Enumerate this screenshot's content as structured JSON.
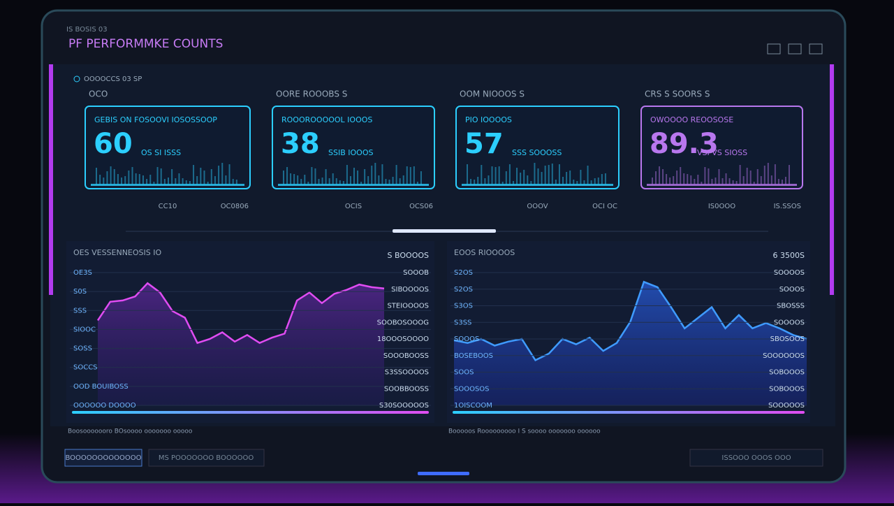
{
  "header": {
    "small": "IS BOSIS 03",
    "title": "PF PERFORMMKE COUNTS"
  },
  "subheader": "OOOOCCS 03 SP",
  "cards": [
    {
      "top_label": "OCO",
      "label": "GEBIS ON FOSOOVI IOSOSSOOP",
      "value": 60,
      "sub_label": "OS SI ISSS",
      "foot_left": "CC10",
      "foot_right": "OC0806",
      "color": "#2ccfff"
    },
    {
      "top_label": "OORE ROOOBS S",
      "label": "ROOOROOOOOL IOOOS",
      "value": 38,
      "sub_label": "SSIB IOOOS",
      "foot_left": "OCIS",
      "foot_right": "OCS06",
      "color": "#2ccfff"
    },
    {
      "top_label": "OOM NIOOOS S",
      "label": "PIO IOOOOS",
      "value": 57,
      "sub_label": "SSS SOOOSS",
      "foot_left": "OOOV",
      "foot_right": "OCI OC",
      "color": "#2ccfff"
    },
    {
      "top_label": "CRS S SOORS S",
      "label": "OWOOOO REOOSOSE",
      "value": 89.3,
      "sub_label": "VSI VS SIOSS",
      "foot_left": "IS0OOO",
      "foot_right": "IS.SSOS",
      "color": "#b877ee"
    }
  ],
  "charts": [
    {
      "title": "OES VESSENNEOSIS IO",
      "right_title": "S BOOOOS",
      "color": "#e04cf2",
      "left_labels": [
        "OE3S",
        "S0S",
        "SSS",
        "SIOOC",
        "SOSS",
        "SOCCS",
        "OOD BOUIBOSS",
        "OOOOOO DOOOO"
      ],
      "right_labels": [
        "SOOOB",
        "SIBOOOOS",
        "STEIOOOOS",
        "SOOBOSOOOG",
        "18OOOSOOOO",
        "SOOOBOOSS",
        "S3SSOOOOS",
        "SOOBBOOSS",
        "S30SOOOOOS"
      ],
      "caption": "Boosooooooro BOsoooo ooooooo ooooo",
      "ylim": [
        0,
        100
      ],
      "values": [
        64,
        78,
        79,
        82,
        92,
        85,
        71,
        66,
        47,
        50,
        55,
        48,
        53,
        47,
        51,
        54,
        79,
        85,
        77,
        84,
        87,
        91,
        89,
        88
      ]
    },
    {
      "title": "EOOS RIOOOOS",
      "right_title": "6 3500S",
      "color": "#3f9bff",
      "left_labels": [
        "S2OS",
        "S2OS",
        "S3OS",
        "S3SS",
        "SOOOS",
        "BOSEBOOS",
        "SOOS",
        "SOOOSOS",
        "1OISCOOM"
      ],
      "right_labels": [
        "SOOOOS",
        "SOOOS",
        "SBOSSS",
        "SOOOOS",
        "SBOSOOS",
        "SOOOOOOS",
        "SOBOOOS",
        "SOBOOOS",
        "SOOOOOS"
      ],
      "caption": "Booooos Rooooooooo I S soooo ooooooo oooooo",
      "ylim": [
        0,
        100
      ],
      "values": [
        49,
        47,
        50,
        45,
        48,
        50,
        34,
        39,
        50,
        46,
        51,
        41,
        47,
        63,
        93,
        89,
        74,
        58,
        66,
        74,
        58,
        68,
        58,
        62,
        58,
        53,
        50
      ]
    }
  ],
  "footer": {
    "button_1": "BOOOOOOOOOOOOO",
    "button_2": "MS POOOOOOO BOOOOOO",
    "button_3": "ISSOOO OOOS OOO"
  }
}
